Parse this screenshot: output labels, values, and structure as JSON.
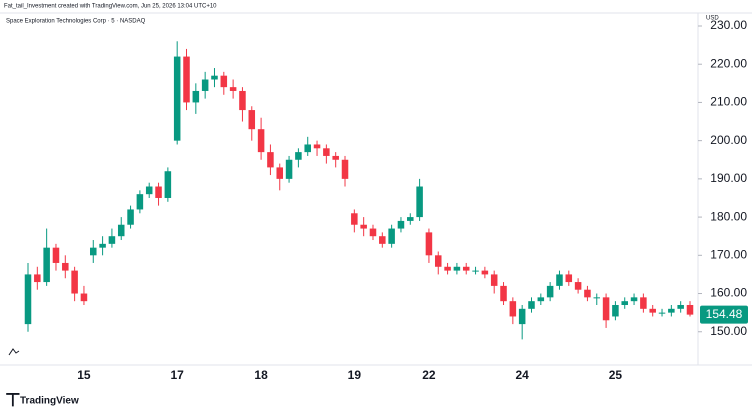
{
  "chart_data": {
    "type": "candlestick",
    "header": "Fat_tail_Investment created with TradingView.com, Jun 25, 2026 13:04 UTC+10",
    "title": "Space Exploration Technologies Corp · 5 · NASDAQ",
    "currency": "USD",
    "brand": "TradingView",
    "up_color": "#089981",
    "down_color": "#f23645",
    "categories": [
      null,
      null,
      null,
      null,
      null,
      null,
      "15",
      null,
      null,
      null,
      null,
      null,
      null,
      null,
      null,
      null,
      "17",
      null,
      null,
      null,
      null,
      null,
      null,
      null,
      null,
      "18",
      null,
      null,
      null,
      null,
      null,
      null,
      null,
      null,
      null,
      "19",
      null,
      null,
      null,
      null,
      null,
      null,
      null,
      "22",
      null,
      null,
      null,
      null,
      null,
      null,
      null,
      null,
      null,
      "24",
      null,
      null,
      null,
      null,
      null,
      null,
      null,
      null,
      null,
      "25",
      null,
      null,
      null,
      null,
      null,
      null,
      null,
      null
    ],
    "open": [
      152,
      165,
      163,
      172,
      168,
      166,
      160,
      170,
      172,
      173,
      175,
      178,
      182,
      186,
      188,
      185,
      200,
      222,
      210,
      213,
      216,
      217,
      214,
      213,
      208,
      203,
      197,
      193,
      190,
      195,
      197,
      199,
      198,
      196,
      195,
      181,
      178,
      177,
      175,
      173,
      177,
      179,
      180,
      176,
      170,
      167,
      166,
      167,
      166,
      166,
      165,
      162,
      158,
      152,
      156,
      158,
      159,
      162,
      165,
      163,
      161,
      159,
      159,
      154,
      157,
      158,
      159,
      156,
      155,
      155,
      156,
      157
    ],
    "high": [
      168,
      167,
      177,
      173,
      170,
      167,
      162,
      174,
      175,
      177,
      180,
      183,
      187,
      189,
      189,
      193,
      226,
      224,
      215,
      218,
      219,
      218,
      216,
      214,
      209,
      206,
      199,
      194,
      196,
      198,
      201,
      200,
      199,
      197,
      196,
      182,
      180,
      178,
      176,
      178,
      180,
      181,
      190,
      177,
      171,
      168,
      168,
      168,
      167,
      167,
      166,
      163,
      159,
      157,
      159,
      160,
      163,
      166,
      166,
      164,
      162,
      160,
      160,
      158,
      159,
      160,
      160,
      157,
      156,
      157,
      158,
      158
    ],
    "low": [
      150,
      161,
      162,
      166,
      164,
      158,
      157,
      168,
      170,
      172,
      174,
      177,
      181,
      185,
      183,
      184,
      199,
      208,
      207,
      211,
      214,
      212,
      211,
      205,
      200,
      195,
      191,
      187,
      189,
      193,
      196,
      196,
      194,
      193,
      188,
      176,
      175,
      174,
      172,
      172,
      176,
      178,
      179,
      168,
      165,
      165,
      165,
      165,
      165,
      164,
      160,
      157,
      152,
      148,
      155,
      157,
      158,
      161,
      162,
      160,
      158,
      157,
      151,
      153,
      156,
      157,
      155,
      154,
      154,
      154,
      155,
      154
    ],
    "close": [
      165,
      163,
      172,
      168,
      166,
      160,
      158,
      172,
      173,
      175,
      178,
      182,
      186,
      188,
      185,
      192,
      222,
      210,
      213,
      216,
      217,
      214,
      213,
      208,
      203,
      197,
      193,
      190,
      195,
      197,
      199,
      198,
      196,
      195,
      190,
      178,
      177,
      175,
      173,
      177,
      179,
      180,
      188,
      170,
      167,
      166,
      167,
      166,
      166,
      165,
      162,
      158,
      154,
      156,
      158,
      159,
      162,
      165,
      163,
      161,
      159,
      159,
      153,
      157,
      158,
      159,
      156,
      155,
      155,
      156,
      157,
      154.48
    ],
    "last_price": 154.48,
    "ylim": [
      141.3,
      233.4
    ],
    "yticks": [
      {
        "value": 150,
        "label": "150.00"
      },
      {
        "value": 160,
        "label": "160.00"
      },
      {
        "value": 170,
        "label": "170.00"
      },
      {
        "value": 180,
        "label": "180.00"
      },
      {
        "value": 190,
        "label": "190.00"
      },
      {
        "value": 200,
        "label": "200.00"
      },
      {
        "value": 210,
        "label": "210.00"
      },
      {
        "value": 220,
        "label": "220.00"
      },
      {
        "value": 230,
        "label": "230.00"
      }
    ]
  }
}
